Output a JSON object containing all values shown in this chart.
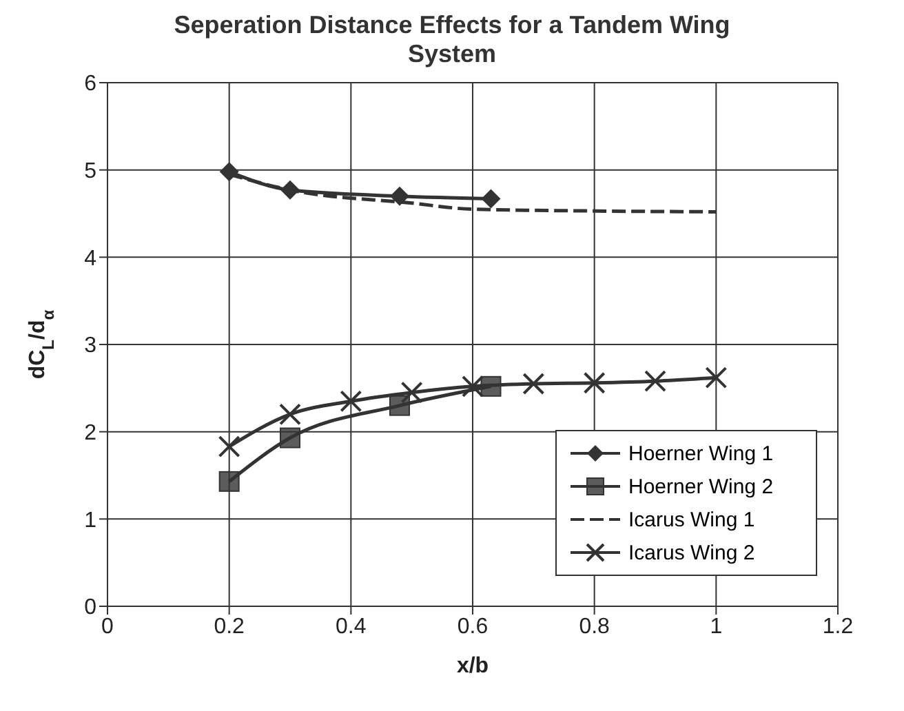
{
  "chart_data": {
    "type": "line",
    "title": "Seperation Distance Effects for a Tandem Wing System",
    "xlabel": "x/b",
    "ylabel": "dC$_{L}$/d$_{α}$",
    "xlim": [
      0,
      1.2
    ],
    "xticks": [
      0,
      0.2,
      0.4,
      0.6,
      0.8,
      1,
      1.2
    ],
    "ylim": [
      0,
      6
    ],
    "yticks": [
      0,
      1,
      2,
      3,
      4,
      5,
      6
    ],
    "grid": true,
    "legend": "bottom right",
    "series": [
      {
        "name": "Hoerner Wing 1",
        "color": "#333333",
        "marker": "diamond",
        "line_style": "solid",
        "x": [
          0.2,
          0.3,
          0.48,
          0.63
        ],
        "values": [
          4.98,
          4.77,
          4.7,
          4.67
        ]
      },
      {
        "name": "Hoerner Wing 2",
        "color": "#333333",
        "marker": "square",
        "line_style": "solid",
        "x": [
          0.2,
          0.3,
          0.48,
          0.63
        ],
        "values": [
          1.43,
          1.93,
          2.3,
          2.52
        ]
      },
      {
        "name": "Icarus Wing 1",
        "color": "#333333",
        "marker": "none",
        "line_style": "dashed",
        "x": [
          0.2,
          0.3,
          0.5,
          0.6,
          0.8,
          1.0
        ],
        "values": [
          4.95,
          4.77,
          4.62,
          4.55,
          4.53,
          4.52
        ]
      },
      {
        "name": "Icarus Wing 2",
        "color": "#333333",
        "marker": "cross",
        "line_style": "solid",
        "x": [
          0.2,
          0.3,
          0.4,
          0.5,
          0.6,
          0.7,
          0.8,
          0.9,
          1.0
        ],
        "values": [
          1.83,
          2.2,
          2.35,
          2.45,
          2.52,
          2.55,
          2.56,
          2.58,
          2.62
        ]
      }
    ]
  }
}
